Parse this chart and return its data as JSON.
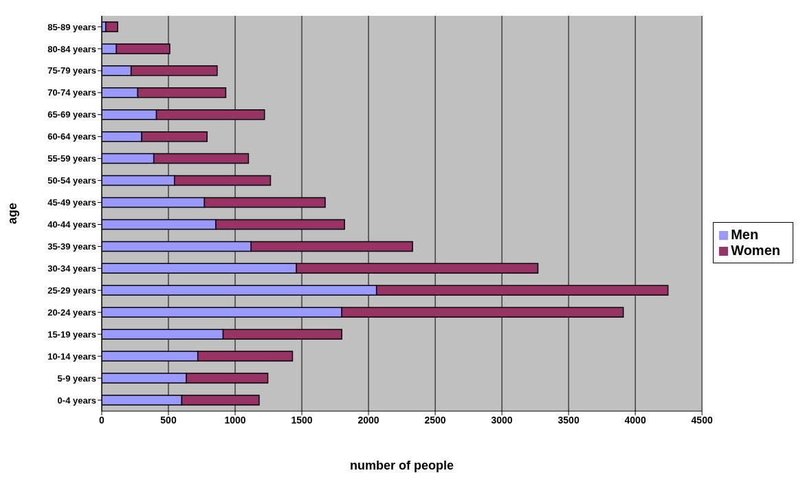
{
  "chart_data": {
    "type": "bar",
    "orientation": "horizontal",
    "stacked": true,
    "xlabel": "number of people",
    "ylabel": "age",
    "categories": [
      "85-89 years",
      "80-84 years",
      "75-79 years",
      "70-74 years",
      "65-69 years",
      "60-64 years",
      "55-59 years",
      "50-54 years",
      "45-49 years",
      "40-44 years",
      "35-39 years",
      "30-34 years",
      "25-29 years",
      "20-24 years",
      "15-19 years",
      "10-14 years",
      "5-9 years",
      "0-4 years"
    ],
    "series": [
      {
        "name": "Men",
        "color": "#9999ff",
        "values": [
          30,
          110,
          220,
          270,
          410,
          300,
          390,
          545,
          770,
          855,
          1120,
          1460,
          2060,
          1800,
          910,
          720,
          635,
          600
        ]
      },
      {
        "name": "Women",
        "color": "#993366",
        "values": [
          90,
          400,
          645,
          660,
          810,
          490,
          710,
          720,
          905,
          965,
          1210,
          1810,
          2185,
          2110,
          890,
          710,
          610,
          580
        ]
      }
    ],
    "xlim": [
      0,
      4500
    ],
    "xticks": [
      0,
      500,
      1000,
      1500,
      2000,
      2500,
      3000,
      3500,
      4000,
      4500
    ],
    "grid": "x",
    "legend": "right"
  }
}
